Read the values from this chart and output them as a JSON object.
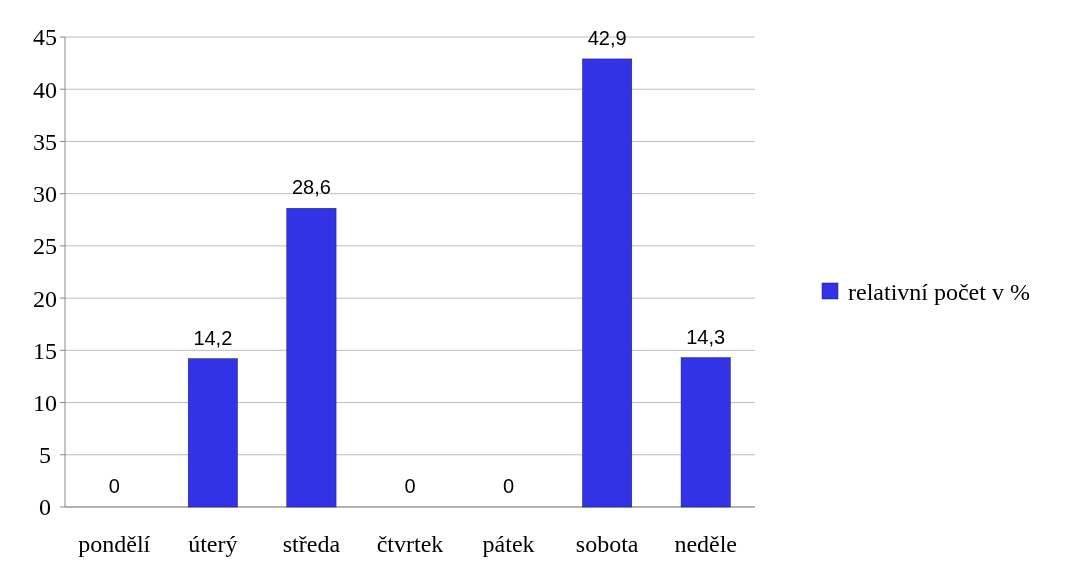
{
  "chart_data": {
    "type": "bar",
    "categories": [
      "pondělí",
      "úterý",
      "středa",
      "čtvrtek",
      "pátek",
      "sobota",
      "neděle"
    ],
    "series": [
      {
        "name": "relativní počet v %",
        "color": "#3232e6",
        "values": [
          0,
          14.2,
          28.6,
          0,
          0,
          42.9,
          14.3
        ],
        "value_labels": [
          "0",
          "14,2",
          "28,6",
          "0",
          "0",
          "42,9",
          "14,3"
        ]
      }
    ],
    "ylim": [
      0,
      45
    ],
    "yticks": [
      0,
      5,
      10,
      15,
      20,
      25,
      30,
      35,
      40,
      45
    ],
    "grid": "y",
    "legend": "right"
  }
}
